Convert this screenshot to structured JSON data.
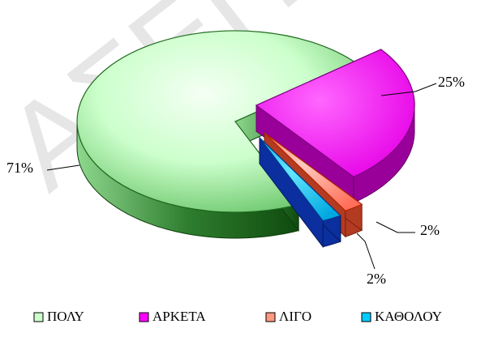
{
  "chart_data": {
    "type": "pie",
    "style": "3d exploded pie",
    "categories": [
      "ΠΟΛΥ",
      "ΑΡΚΕΤΑ",
      "ΛΙΓΟ",
      "ΚΑΘΟΛΟΥ"
    ],
    "values": [
      71,
      25,
      2,
      2
    ],
    "data_labels": [
      "71%",
      "25%",
      "2%",
      "2%"
    ],
    "colors": [
      "#ccffcc",
      "#ff00ff",
      "#ff9980",
      "#00ccff"
    ],
    "legend_position": "bottom",
    "watermark": "ΑΣΕΠ"
  }
}
